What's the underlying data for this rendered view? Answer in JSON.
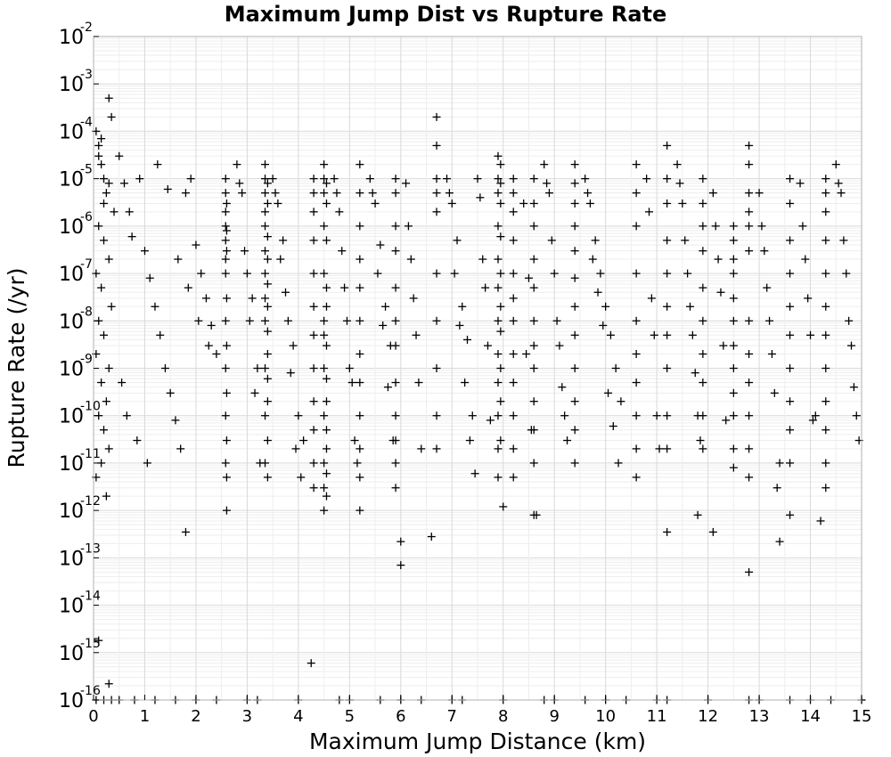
{
  "chart_data": {
    "type": "scatter",
    "title": "Maximum Jump Dist vs Rupture Rate",
    "xlabel": "Maximum Jump Distance (km)",
    "ylabel": "Rupture Rate (/yr)",
    "xlim": [
      0,
      15
    ],
    "ylim": [
      1e-16,
      0.01
    ],
    "yscale": "log",
    "marker": "+",
    "marker_color": "#000000",
    "grid": true,
    "legend": "none",
    "xticks": [
      "0",
      "1",
      "2",
      "3",
      "4",
      "5",
      "6",
      "7",
      "8",
      "9",
      "10",
      "11",
      "12",
      "13",
      "14",
      "15"
    ],
    "yticks": [
      {
        "base": "10",
        "exp": "-2"
      },
      {
        "base": "10",
        "exp": "-3"
      },
      {
        "base": "10",
        "exp": "-4"
      },
      {
        "base": "10",
        "exp": "-5"
      },
      {
        "base": "10",
        "exp": "-6"
      },
      {
        "base": "10",
        "exp": "-7"
      },
      {
        "base": "10",
        "exp": "-8"
      },
      {
        "base": "10",
        "exp": "-9"
      },
      {
        "base": "10",
        "exp": "-10"
      },
      {
        "base": "10",
        "exp": "-11"
      },
      {
        "base": "10",
        "exp": "-12"
      },
      {
        "base": "10",
        "exp": "-13"
      },
      {
        "base": "10",
        "exp": "-14"
      },
      {
        "base": "10",
        "exp": "-15"
      },
      {
        "base": "10",
        "exp": "-16"
      }
    ],
    "series": [
      {
        "x": [
          0.3,
          0.35,
          0.05,
          0.1,
          0.15,
          0.2,
          0.25,
          0.4,
          0.1,
          0.2,
          0.3,
          0.05,
          0.15,
          0.35,
          0.1,
          0.2,
          0.05,
          0.3,
          0.15,
          0.25,
          0.1,
          0.2,
          0.3,
          0.15,
          0.05,
          0.25,
          0.1,
          0.3,
          0.2,
          0.15,
          0.5,
          0.6,
          0.7,
          0.75,
          0.9,
          1.0,
          1.1,
          1.2,
          1.3,
          1.4,
          1.5,
          1.6,
          1.7,
          1.8,
          1.9,
          2.0,
          2.1,
          2.2,
          2.3,
          2.4,
          0.55,
          0.65,
          0.85,
          1.05,
          1.25,
          1.45,
          1.65,
          1.85,
          2.05,
          2.25,
          2.58,
          2.58,
          2.58,
          2.58,
          2.58,
          2.58,
          2.58,
          2.58,
          2.58,
          2.58,
          2.58,
          2.6,
          2.6,
          2.6,
          2.6,
          2.6,
          2.6,
          2.6,
          2.6,
          2.6,
          2.8,
          2.9,
          3.0,
          3.1,
          3.2,
          2.85,
          2.95,
          3.05,
          3.15,
          3.25,
          3.35,
          3.35,
          3.35,
          3.35,
          3.35,
          3.35,
          3.35,
          3.35,
          3.35,
          3.35,
          3.35,
          3.35,
          3.4,
          3.4,
          3.4,
          3.4,
          3.4,
          3.4,
          3.4,
          3.4,
          3.4,
          3.4,
          3.4,
          3.4,
          3.5,
          3.6,
          3.7,
          3.8,
          3.9,
          4.0,
          4.1,
          3.55,
          3.65,
          3.75,
          3.85,
          3.95,
          4.05,
          4.3,
          4.3,
          4.3,
          4.3,
          4.3,
          4.3,
          4.3,
          4.3,
          4.3,
          4.3,
          4.3,
          4.3,
          4.5,
          4.5,
          4.5,
          4.5,
          4.5,
          4.5,
          4.5,
          4.5,
          4.5,
          4.5,
          4.5,
          4.5,
          4.55,
          4.55,
          4.55,
          4.55,
          4.55,
          4.55,
          4.55,
          4.55,
          4.55,
          4.55,
          4.55,
          4.55,
          4.7,
          4.8,
          4.9,
          5.0,
          5.1,
          4.75,
          4.85,
          4.95,
          5.05,
          5.15,
          5.2,
          5.2,
          5.2,
          5.2,
          5.2,
          5.2,
          5.2,
          5.2,
          5.2,
          5.2,
          5.2,
          5.2,
          5.4,
          5.5,
          5.6,
          5.7,
          5.8,
          5.45,
          5.55,
          5.65,
          5.75,
          5.85,
          5.9,
          5.9,
          5.9,
          5.9,
          5.9,
          5.9,
          5.9,
          5.9,
          5.9,
          5.9,
          5.9,
          5.9,
          6.1,
          6.2,
          6.3,
          6.4,
          6.15,
          6.25,
          6.35,
          6.7,
          6.7,
          6.7,
          6.7,
          6.7,
          6.7,
          6.7,
          6.7,
          6.7,
          6.7,
          6.9,
          7.0,
          7.1,
          7.2,
          7.3,
          7.4,
          6.95,
          7.05,
          7.15,
          7.25,
          7.35,
          7.45,
          7.5,
          7.6,
          7.7,
          7.55,
          7.65,
          7.75,
          7.9,
          7.9,
          7.9,
          7.9,
          7.9,
          7.9,
          7.9,
          7.9,
          7.9,
          7.9,
          7.9,
          7.9,
          7.95,
          7.95,
          7.95,
          7.95,
          7.95,
          7.95,
          7.95,
          7.95,
          7.95,
          7.95,
          8.2,
          8.2,
          8.2,
          8.2,
          8.2,
          8.2,
          8.2,
          8.2,
          8.2,
          8.2,
          8.2,
          8.2,
          8.4,
          8.5,
          8.45,
          8.55,
          8.6,
          8.6,
          8.6,
          8.6,
          8.6,
          8.6,
          8.6,
          8.6,
          8.6,
          8.6,
          8.6,
          8.6,
          8.8,
          8.9,
          9.0,
          9.1,
          9.2,
          8.85,
          8.95,
          9.05,
          9.15,
          9.25,
          9.4,
          9.4,
          9.4,
          9.4,
          9.4,
          9.4,
          9.4,
          9.4,
          9.4,
          9.4,
          9.4,
          9.4,
          9.6,
          9.7,
          9.8,
          9.9,
          10.0,
          10.1,
          10.2,
          10.3,
          9.65,
          9.75,
          9.85,
          9.95,
          10.05,
          10.15,
          10.25,
          10.6,
          10.6,
          10.6,
          10.6,
          10.6,
          10.6,
          10.6,
          10.6,
          10.6,
          10.6,
          10.8,
          10.9,
          11.0,
          10.85,
          10.95,
          11.05,
          11.2,
          11.2,
          11.2,
          11.2,
          11.2,
          11.2,
          11.2,
          11.2,
          11.2,
          11.2,
          11.4,
          11.5,
          11.6,
          11.7,
          11.8,
          11.45,
          11.55,
          11.65,
          11.75,
          11.85,
          11.9,
          11.9,
          11.9,
          11.9,
          11.9,
          11.9,
          11.9,
          11.9,
          11.9,
          11.9,
          12.1,
          12.2,
          12.3,
          12.15,
          12.25,
          12.35,
          12.5,
          12.5,
          12.5,
          12.5,
          12.5,
          12.5,
          12.5,
          12.5,
          12.5,
          12.5,
          12.5,
          12.5,
          12.8,
          12.8,
          12.8,
          12.8,
          12.8,
          12.8,
          12.8,
          12.8,
          12.8,
          12.8,
          12.8,
          12.8,
          13.0,
          13.1,
          13.2,
          13.3,
          13.4,
          13.05,
          13.15,
          13.25,
          13.35,
          13.6,
          13.6,
          13.6,
          13.6,
          13.6,
          13.6,
          13.6,
          13.6,
          13.6,
          13.6,
          13.8,
          13.9,
          14.0,
          14.1,
          13.85,
          13.95,
          14.05,
          14.3,
          14.3,
          14.3,
          14.3,
          14.3,
          14.3,
          14.3,
          14.3,
          14.3,
          14.3,
          14.3,
          14.3,
          14.5,
          14.6,
          14.7,
          14.8,
          14.9,
          14.55,
          14.65,
          14.75,
          14.85,
          14.95,
          0.1,
          0.3,
          1.8,
          4.25,
          6.0,
          6.0,
          6.6,
          8.0,
          8.65,
          11.2,
          11.8,
          12.1,
          12.8,
          13.4,
          13.6,
          14.2,
          0.05,
          0.5,
          1.2,
          2.0,
          3.0,
          4.0,
          5.0,
          6.0,
          7.0,
          8.0,
          9.0,
          10.0,
          11.0,
          12.0,
          13.0,
          14.0,
          15.0,
          0.8,
          1.6,
          2.4,
          3.2,
          4.8,
          5.6,
          6.4,
          7.2,
          8.8,
          9.6,
          10.4,
          11.2,
          12.8,
          13.6,
          14.4,
          0.2,
          0.35
        ],
        "y": [
          0.0005,
          0.0002,
          0.0001,
          5e-05,
          2e-05,
          1e-05,
          5e-06,
          2e-06,
          1e-06,
          5e-07,
          2e-07,
          1e-07,
          5e-08,
          2e-08,
          1e-08,
          5e-09,
          2e-09,
          1e-09,
          5e-10,
          2e-10,
          1e-10,
          5e-11,
          2e-11,
          1e-11,
          5e-12,
          2e-12,
          3e-05,
          8e-06,
          3e-06,
          7e-05,
          3e-05,
          8e-06,
          2e-06,
          6e-07,
          1e-05,
          3e-07,
          8e-08,
          2e-08,
          5e-09,
          1e-09,
          3e-10,
          8e-11,
          2e-11,
          5e-06,
          1e-05,
          4e-07,
          1e-07,
          3e-08,
          8e-09,
          2e-09,
          5e-10,
          1e-10,
          3e-11,
          1e-11,
          2e-05,
          6e-06,
          2e-07,
          5e-08,
          1e-08,
          3e-09,
          1e-05,
          5e-06,
          2e-06,
          1e-06,
          5e-07,
          2e-07,
          1e-07,
          1e-08,
          1e-09,
          1e-10,
          1e-11,
          3e-06,
          8e-07,
          3e-07,
          3e-08,
          3e-09,
          3e-10,
          3e-11,
          5e-12,
          1e-12,
          2e-05,
          5e-06,
          1e-07,
          3e-08,
          1e-09,
          8e-06,
          3e-07,
          1e-08,
          3e-10,
          1e-11,
          2e-05,
          1e-05,
          5e-06,
          2e-06,
          1e-06,
          3e-07,
          1e-07,
          3e-08,
          1e-08,
          1e-09,
          1e-10,
          1e-11,
          8e-06,
          3e-06,
          6e-07,
          2e-07,
          6e-08,
          2e-08,
          6e-09,
          2e-09,
          6e-10,
          2e-10,
          3e-11,
          5e-12,
          1e-05,
          3e-06,
          5e-07,
          1e-08,
          3e-09,
          1e-10,
          3e-11,
          5e-06,
          2e-07,
          4e-08,
          8e-10,
          2e-11,
          5e-12,
          1e-05,
          5e-06,
          2e-06,
          5e-07,
          1e-07,
          2e-08,
          5e-09,
          1e-09,
          2e-10,
          5e-11,
          1e-11,
          3e-12,
          2e-05,
          1e-05,
          5e-06,
          1e-06,
          1e-07,
          1e-08,
          5e-09,
          1e-09,
          1e-10,
          1e-11,
          3e-12,
          1e-12,
          8e-06,
          3e-06,
          5e-07,
          5e-08,
          2e-08,
          3e-09,
          6e-10,
          2e-10,
          5e-11,
          2e-11,
          6e-12,
          2e-12,
          1e-05,
          2e-06,
          5e-08,
          1e-09,
          3e-11,
          5e-06,
          3e-07,
          1e-08,
          5e-10,
          1e-11,
          2e-05,
          5e-06,
          1e-06,
          2e-07,
          5e-08,
          1e-08,
          2e-09,
          5e-10,
          1e-10,
          2e-11,
          5e-12,
          1e-12,
          1e-05,
          3e-06,
          4e-07,
          2e-08,
          3e-09,
          5e-06,
          1e-07,
          8e-09,
          4e-10,
          3e-11,
          1e-05,
          5e-06,
          1e-06,
          3e-07,
          5e-08,
          1e-08,
          3e-09,
          5e-10,
          1e-10,
          3e-11,
          1e-11,
          3e-12,
          8e-06,
          2e-07,
          5e-09,
          2e-11,
          1e-06,
          3e-08,
          5e-10,
          0.0002,
          5e-05,
          1e-05,
          5e-06,
          2e-06,
          1e-07,
          1e-08,
          1e-09,
          1e-10,
          2e-11,
          1e-05,
          3e-06,
          5e-07,
          2e-08,
          4e-09,
          1e-10,
          5e-06,
          1e-07,
          8e-09,
          5e-10,
          3e-11,
          6e-12,
          1e-05,
          2e-07,
          3e-09,
          4e-06,
          5e-08,
          8e-11,
          3e-05,
          1e-05,
          5e-06,
          1e-06,
          2e-07,
          5e-08,
          1e-08,
          2e-09,
          5e-10,
          1e-10,
          2e-11,
          5e-12,
          2e-05,
          8e-06,
          3e-06,
          6e-07,
          1e-07,
          2e-08,
          6e-09,
          1e-09,
          2e-10,
          3e-11,
          1e-05,
          5e-06,
          2e-06,
          5e-07,
          1e-07,
          3e-08,
          1e-08,
          2e-09,
          5e-10,
          1e-10,
          2e-11,
          5e-12,
          3e-06,
          8e-08,
          2e-09,
          5e-11,
          1e-05,
          3e-06,
          1e-06,
          2e-07,
          5e-08,
          1e-08,
          3e-09,
          1e-09,
          2e-10,
          5e-11,
          1e-11,
          8e-13,
          2e-05,
          5e-06,
          1e-07,
          3e-09,
          1e-10,
          8e-06,
          5e-07,
          1e-08,
          4e-10,
          3e-11,
          2e-05,
          8e-06,
          3e-06,
          1e-06,
          3e-07,
          8e-08,
          2e-08,
          5e-09,
          1e-09,
          2e-10,
          5e-11,
          1e-11,
          1e-05,
          3e-06,
          5e-07,
          1e-07,
          2e-08,
          5e-09,
          1e-09,
          2e-10,
          5e-06,
          2e-07,
          4e-08,
          8e-09,
          3e-10,
          6e-11,
          1e-11,
          2e-05,
          5e-06,
          1e-06,
          1e-07,
          1e-08,
          2e-09,
          5e-10,
          1e-10,
          2e-11,
          5e-12,
          1e-05,
          3e-08,
          1e-10,
          2e-06,
          5e-09,
          2e-11,
          5e-05,
          1e-05,
          3e-06,
          5e-07,
          1e-07,
          2e-08,
          5e-09,
          1e-09,
          1e-10,
          2e-11,
          2e-05,
          3e-06,
          1e-07,
          5e-09,
          1e-10,
          8e-06,
          5e-07,
          2e-08,
          8e-10,
          3e-11,
          1e-05,
          3e-06,
          1e-06,
          3e-07,
          5e-08,
          1e-08,
          2e-09,
          5e-10,
          1e-10,
          2e-11,
          5e-06,
          2e-07,
          3e-09,
          1e-06,
          4e-08,
          8e-11,
          1e-06,
          5e-07,
          2e-07,
          1e-07,
          3e-08,
          1e-08,
          3e-09,
          1e-09,
          3e-10,
          1e-10,
          2e-11,
          8e-12,
          5e-05,
          2e-05,
          5e-06,
          2e-06,
          1e-06,
          3e-07,
          1e-08,
          2e-09,
          5e-10,
          1e-10,
          2e-11,
          5e-12,
          5e-06,
          3e-07,
          1e-08,
          3e-10,
          1e-11,
          1e-06,
          5e-08,
          2e-09,
          3e-12,
          1e-05,
          3e-06,
          5e-07,
          1e-07,
          2e-08,
          5e-09,
          1e-09,
          2e-10,
          5e-11,
          1e-11,
          8e-06,
          2e-07,
          5e-09,
          1e-10,
          1e-06,
          3e-08,
          8e-11,
          1e-05,
          5e-06,
          2e-06,
          5e-07,
          1e-07,
          2e-08,
          5e-09,
          1e-09,
          2e-10,
          5e-11,
          1e-11,
          3e-12,
          2e-05,
          5e-06,
          1e-07,
          3e-09,
          1e-10,
          8e-06,
          5e-07,
          1e-08,
          4e-10,
          3e-11,
          1.8e-15,
          2.2e-16,
          3.5e-13,
          6e-16,
          2.2e-13,
          7e-14,
          2.8e-13,
          1.2e-12,
          8e-13,
          3.5e-13,
          8e-13,
          3.5e-13,
          5e-14,
          2.2e-13,
          8e-13,
          6e-13,
          1e-16,
          1e-16,
          1e-16,
          1e-16,
          1e-16,
          1e-16,
          1e-16,
          1e-16,
          1e-16,
          1e-16,
          1e-16,
          1e-16,
          1e-16,
          1e-16,
          1e-16,
          1e-16,
          1e-16,
          1e-16,
          1e-16,
          1e-16,
          1e-16,
          1e-16,
          1e-16,
          1e-16,
          1e-16,
          1e-16,
          1e-16,
          1e-16,
          1e-16,
          1e-16,
          1e-16,
          1e-16,
          1e-16,
          1e-16
        ]
      }
    ]
  }
}
